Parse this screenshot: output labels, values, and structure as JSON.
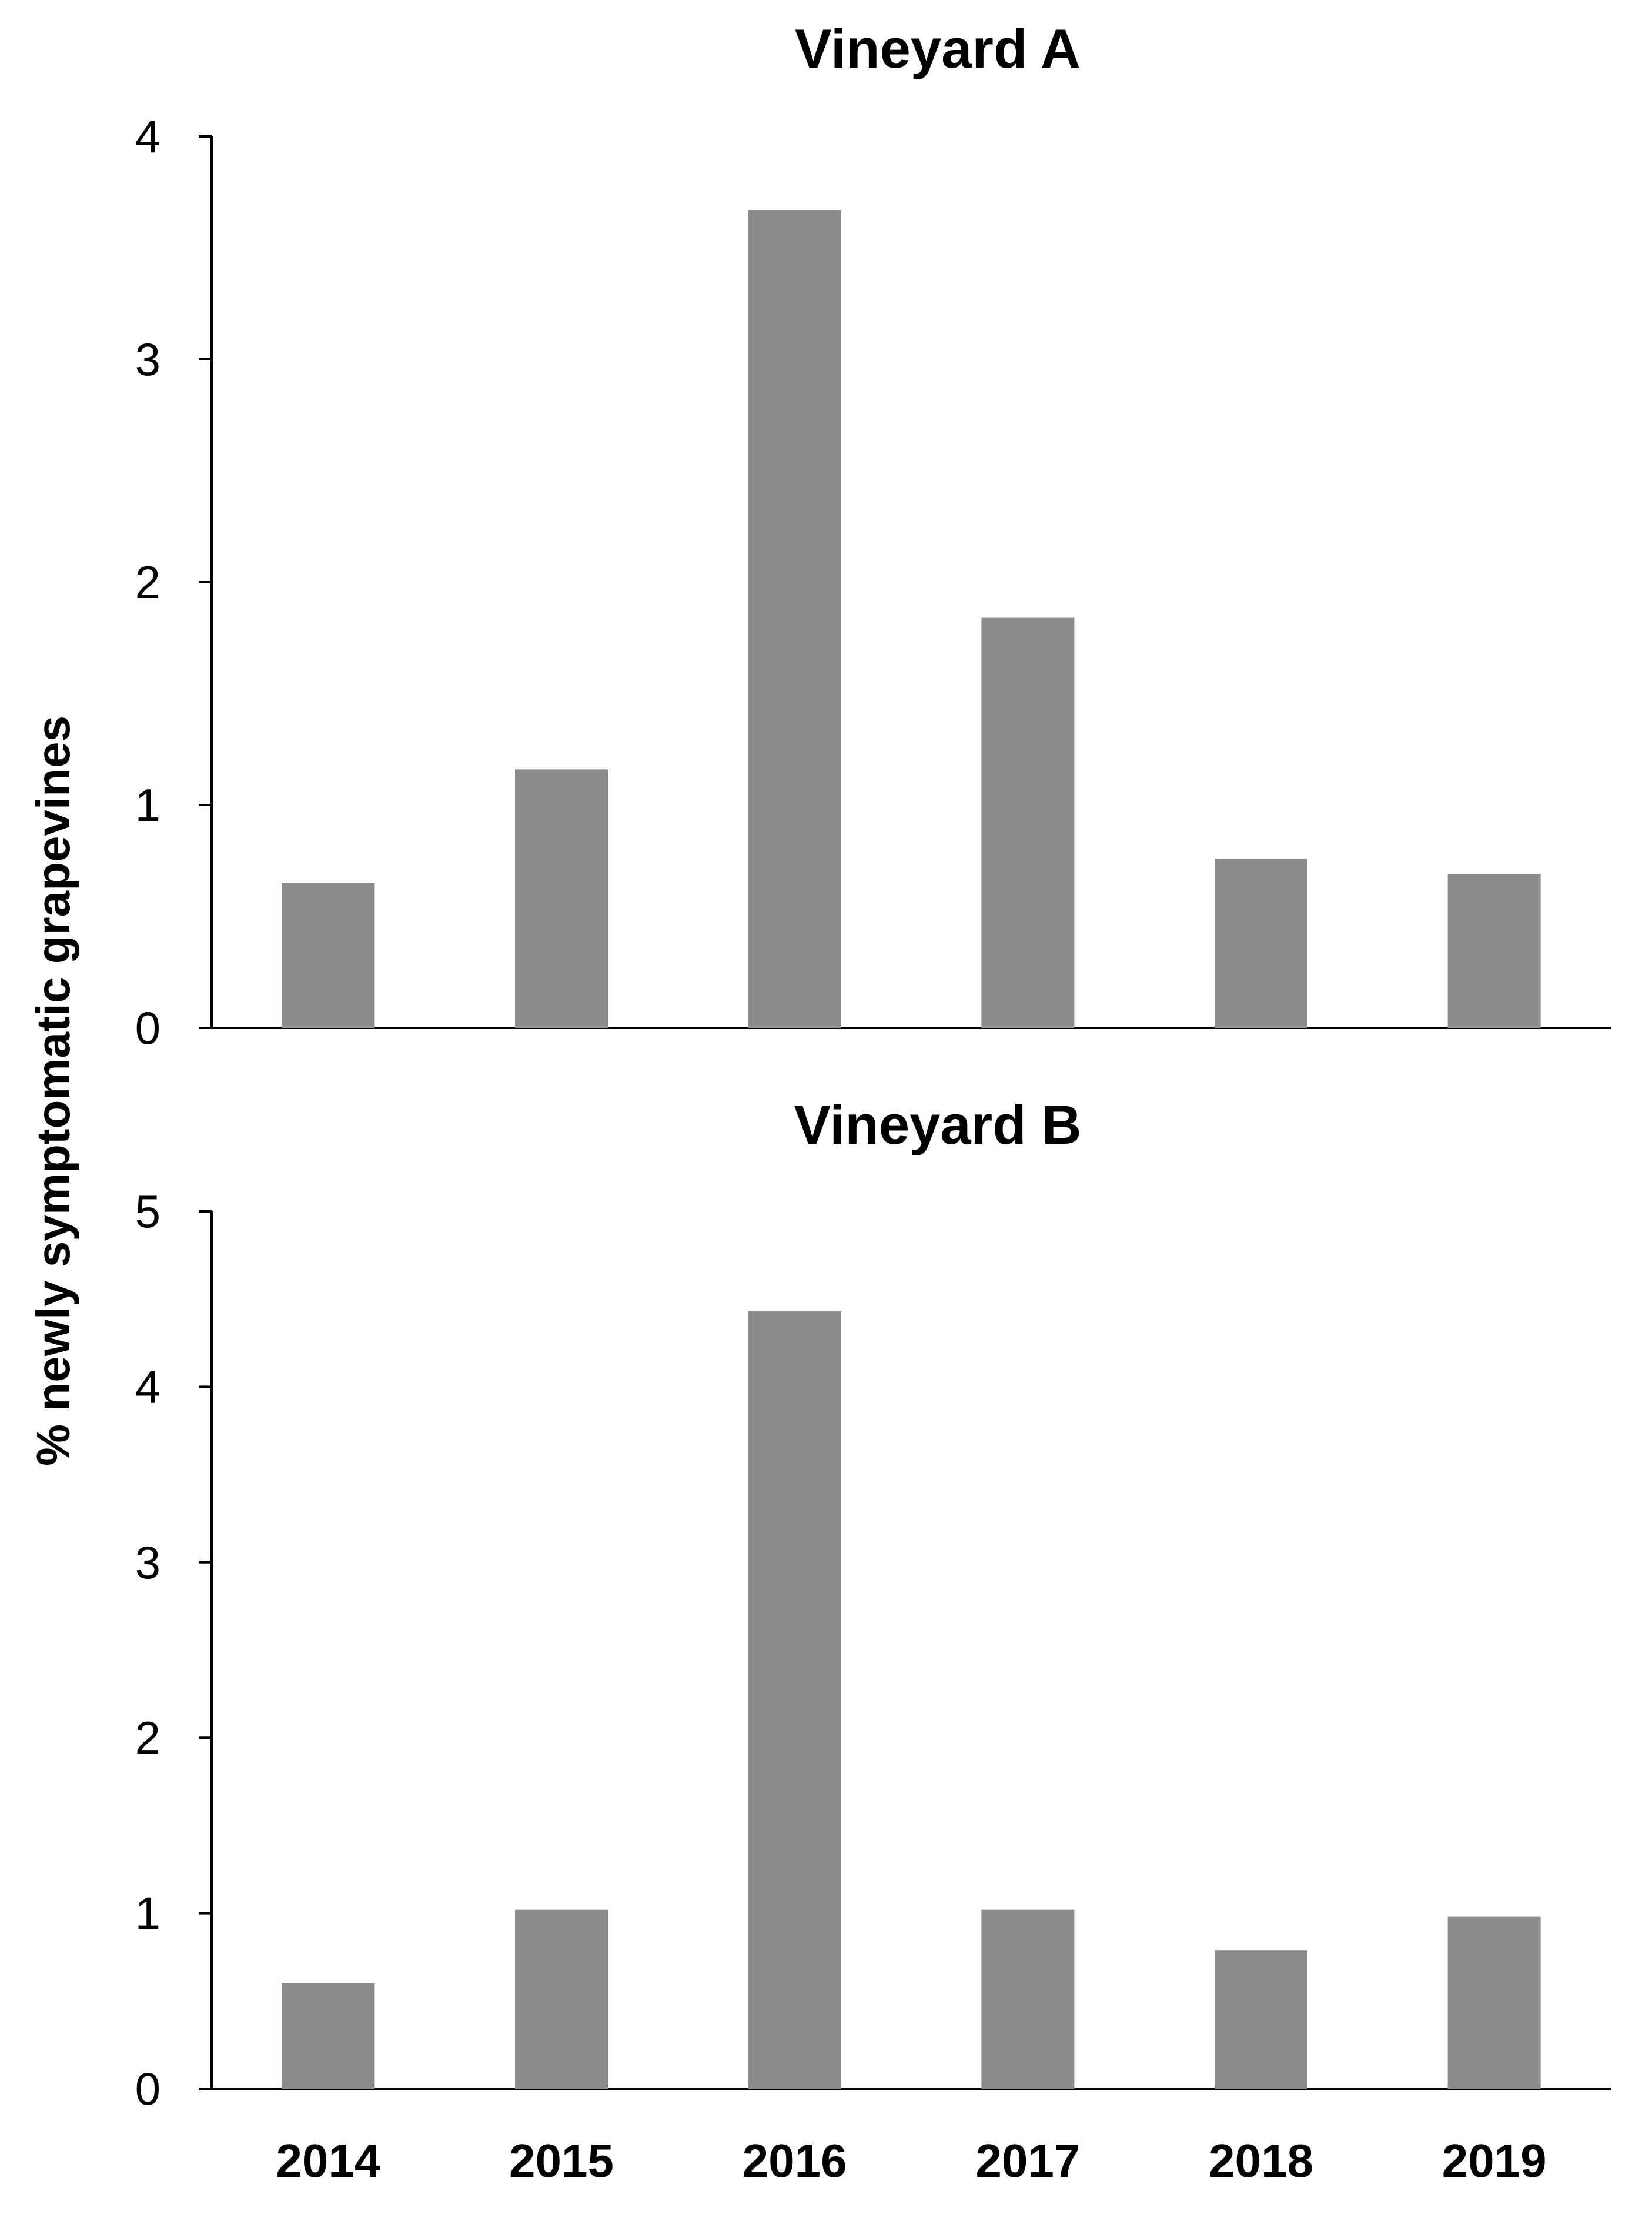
{
  "colors": {
    "bar": "#8c8c8c",
    "axis": "#000000",
    "background": "#ffffff"
  },
  "y_axis_label": "% newly symptomatic grapevines",
  "chart_data": [
    {
      "type": "bar",
      "title": "Vineyard A",
      "categories": [
        "2014",
        "2015",
        "2016",
        "2017",
        "2018",
        "2019"
      ],
      "values": [
        0.65,
        1.16,
        3.67,
        1.84,
        0.76,
        0.69
      ],
      "ylabel": "% newly symptomatic grapevines",
      "ylim": [
        0,
        4
      ],
      "yticks": [
        "0",
        "1",
        "2",
        "3",
        "4"
      ],
      "grid": false,
      "legend": "none"
    },
    {
      "type": "bar",
      "title": "Vineyard B",
      "categories": [
        "2014",
        "2015",
        "2016",
        "2017",
        "2018",
        "2019"
      ],
      "values": [
        0.6,
        1.02,
        4.43,
        1.02,
        0.79,
        0.98
      ],
      "ylabel": "% newly symptomatic grapevines",
      "ylim": [
        0,
        5
      ],
      "yticks": [
        "0",
        "1",
        "2",
        "3",
        "4",
        "5"
      ],
      "grid": false,
      "legend": "none"
    }
  ]
}
